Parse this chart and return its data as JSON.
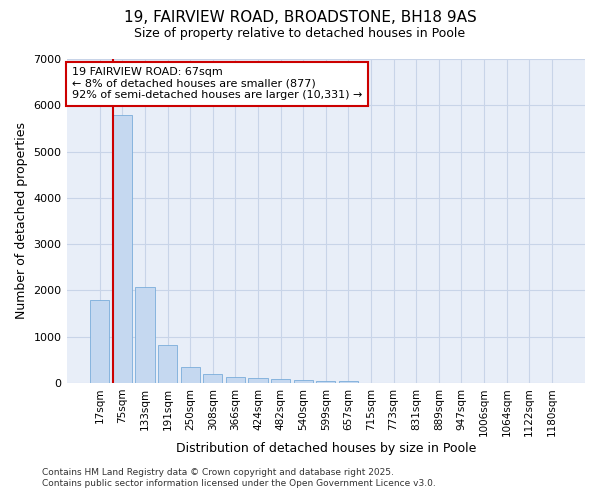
{
  "title_line1": "19, FAIRVIEW ROAD, BROADSTONE, BH18 9AS",
  "title_line2": "Size of property relative to detached houses in Poole",
  "xlabel": "Distribution of detached houses by size in Poole",
  "ylabel": "Number of detached properties",
  "categories": [
    "17sqm",
    "75sqm",
    "133sqm",
    "191sqm",
    "250sqm",
    "308sqm",
    "366sqm",
    "424sqm",
    "482sqm",
    "540sqm",
    "599sqm",
    "657sqm",
    "715sqm",
    "773sqm",
    "831sqm",
    "889sqm",
    "947sqm",
    "1006sqm",
    "1064sqm",
    "1122sqm",
    "1180sqm"
  ],
  "values": [
    1780,
    5800,
    2080,
    820,
    350,
    200,
    120,
    110,
    75,
    55,
    30,
    45,
    0,
    0,
    0,
    0,
    0,
    0,
    0,
    0,
    0
  ],
  "bar_color": "#c5d8f0",
  "bar_edge_color": "#7aadda",
  "grid_color": "#c8d4e8",
  "plot_bg_color": "#e8eef8",
  "fig_bg_color": "#ffffff",
  "annotation_text": "19 FAIRVIEW ROAD: 67sqm\n← 8% of detached houses are smaller (877)\n92% of semi-detached houses are larger (10,331) →",
  "annotation_box_color": "#ffffff",
  "annotation_box_edge": "#cc0000",
  "vline_color": "#cc0000",
  "vline_x": 0.6,
  "ylim": [
    0,
    7000
  ],
  "yticks": [
    0,
    1000,
    2000,
    3000,
    4000,
    5000,
    6000,
    7000
  ],
  "footer_line1": "Contains HM Land Registry data © Crown copyright and database right 2025.",
  "footer_line2": "Contains public sector information licensed under the Open Government Licence v3.0.",
  "title1_fontsize": 11,
  "title2_fontsize": 9,
  "xlabel_fontsize": 9,
  "ylabel_fontsize": 9,
  "xtick_fontsize": 7.5,
  "ytick_fontsize": 8,
  "annot_fontsize": 8,
  "footer_fontsize": 6.5
}
